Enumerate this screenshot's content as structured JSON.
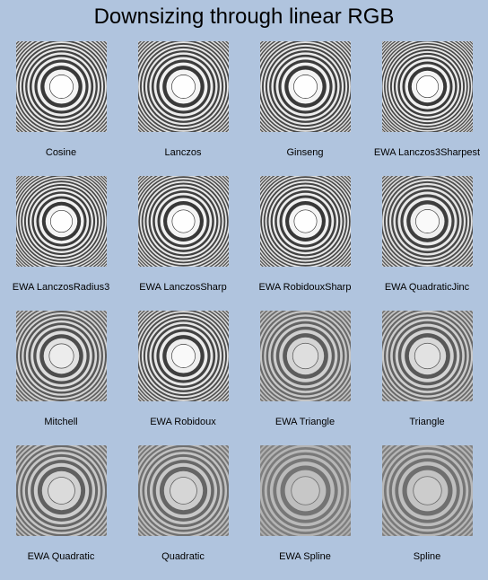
{
  "title": "Downsizing through linear RGB",
  "filters": [
    {
      "label": "Cosine",
      "contrast": 1.0,
      "rings": 13
    },
    {
      "label": "Lanczos",
      "contrast": 1.0,
      "rings": 13
    },
    {
      "label": "Ginseng",
      "contrast": 1.0,
      "rings": 13
    },
    {
      "label": "EWA Lanczos3Sharpest",
      "contrast": 1.0,
      "rings": 15
    },
    {
      "label": "EWA LanczosRadius3",
      "contrast": 1.0,
      "rings": 15
    },
    {
      "label": "EWA LanczosSharp",
      "contrast": 1.0,
      "rings": 14
    },
    {
      "label": "EWA RobidouxSharp",
      "contrast": 1.0,
      "rings": 14
    },
    {
      "label": "EWA QuadraticJinc",
      "contrast": 0.95,
      "rings": 13
    },
    {
      "label": "Mitchell",
      "contrast": 0.82,
      "rings": 12
    },
    {
      "label": "EWA Robidoux",
      "contrast": 0.95,
      "rings": 13
    },
    {
      "label": "EWA Triangle",
      "contrast": 0.68,
      "rings": 11
    },
    {
      "label": "Triangle",
      "contrast": 0.72,
      "rings": 11
    },
    {
      "label": "EWA Quadratic",
      "contrast": 0.65,
      "rings": 10
    },
    {
      "label": "Quadratic",
      "contrast": 0.6,
      "rings": 10
    },
    {
      "label": "EWA Spline",
      "contrast": 0.45,
      "rings": 9
    },
    {
      "label": "Spline",
      "contrast": 0.5,
      "rings": 9
    }
  ]
}
